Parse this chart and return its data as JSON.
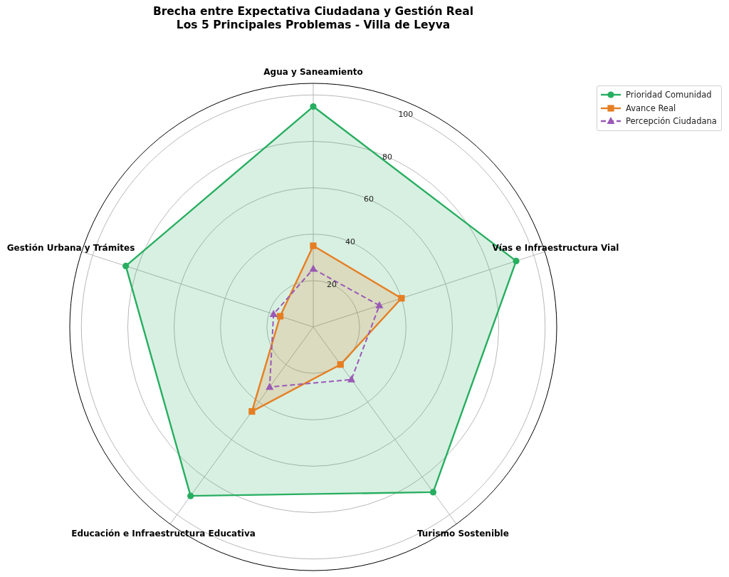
{
  "chart_data": {
    "type": "radar",
    "title": "Brecha entre Expectativa Ciudadana y Gestión Real\nLos 5 Principales Problemas - Villa de Leyva",
    "categories": [
      "Agua y Saneamiento",
      "Vías e Infraestructura Vial",
      "Turismo Sostenible",
      "Educación e Infraestructura Educativa",
      "Gestión Urbana y Trámites"
    ],
    "series": [
      {
        "name": "Prioridad Comunidad",
        "color": "#27ae60",
        "values": [
          95,
          92,
          88,
          90,
          85
        ],
        "marker": "circle",
        "line_style": "solid"
      },
      {
        "name": "Avance Real",
        "color": "#e67e22",
        "values": [
          35,
          40,
          20,
          45,
          15
        ],
        "marker": "square",
        "line_style": "solid"
      },
      {
        "name": "Percepción Ciudadana",
        "color": "#9b59b6",
        "values": [
          25,
          30,
          28,
          32,
          18
        ],
        "marker": "triangle",
        "line_style": "dashed"
      }
    ],
    "ylim": [
      0,
      105
    ],
    "yticks": [
      20,
      40,
      60,
      80,
      100
    ],
    "grid": true,
    "legend": "top right"
  }
}
